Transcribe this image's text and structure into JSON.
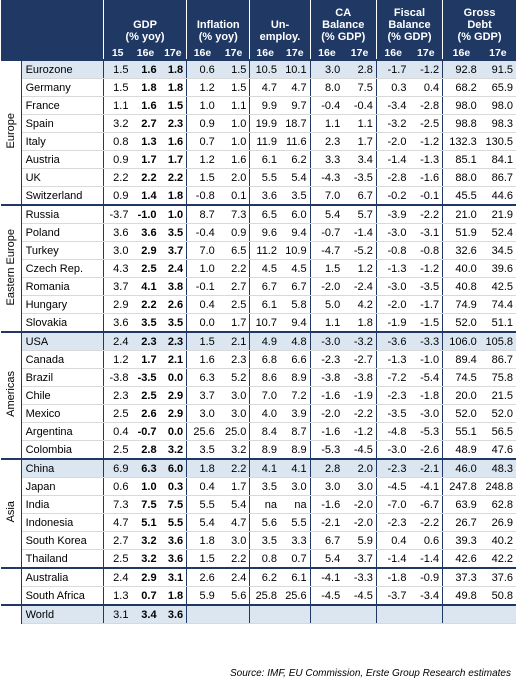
{
  "header": {
    "groups": [
      [
        "GDP",
        "(% yoy)"
      ],
      [
        "Inflation",
        "(% yoy)"
      ],
      [
        "Un-",
        "employ."
      ],
      [
        "CA",
        "Balance",
        "(% GDP)"
      ],
      [
        "Fiscal",
        "Balance",
        "(% GDP)"
      ],
      [
        "Gross",
        "Debt",
        "(% GDP)"
      ]
    ],
    "columns": [
      "15",
      "16e",
      "17e",
      "16e",
      "17e",
      "16e",
      "17e",
      "16e",
      "17e",
      "16e",
      "17e",
      "16e",
      "17e"
    ]
  },
  "regions": [
    {
      "label": "Europe",
      "rows": [
        {
          "country": "Eurozone",
          "highlight": true,
          "values": [
            "1.5",
            "1.6",
            "1.8",
            "0.6",
            "1.5",
            "10.5",
            "10.1",
            "3.0",
            "2.8",
            "-1.7",
            "-1.2",
            "92.8",
            "91.5"
          ]
        },
        {
          "country": "Germany",
          "values": [
            "1.5",
            "1.8",
            "1.8",
            "1.2",
            "1.5",
            "4.7",
            "4.7",
            "8.0",
            "7.5",
            "0.3",
            "0.4",
            "68.2",
            "65.9"
          ]
        },
        {
          "country": "France",
          "values": [
            "1.1",
            "1.6",
            "1.5",
            "1.0",
            "1.1",
            "9.9",
            "9.7",
            "-0.4",
            "-0.4",
            "-3.4",
            "-2.8",
            "98.0",
            "98.0"
          ]
        },
        {
          "country": "Spain",
          "values": [
            "3.2",
            "2.7",
            "2.3",
            "0.9",
            "1.0",
            "19.9",
            "18.7",
            "1.1",
            "1.1",
            "-3.2",
            "-2.5",
            "98.8",
            "98.3"
          ]
        },
        {
          "country": "Italy",
          "values": [
            "0.8",
            "1.3",
            "1.6",
            "0.7",
            "1.0",
            "11.9",
            "11.6",
            "2.3",
            "1.7",
            "-2.0",
            "-1.2",
            "132.3",
            "130.5"
          ]
        },
        {
          "country": "Austria",
          "values": [
            "0.9",
            "1.7",
            "1.7",
            "1.2",
            "1.6",
            "6.1",
            "6.2",
            "3.3",
            "3.4",
            "-1.4",
            "-1.3",
            "85.1",
            "84.1"
          ]
        },
        {
          "country": "UK",
          "values": [
            "2.2",
            "2.2",
            "2.2",
            "1.5",
            "2.0",
            "5.5",
            "5.4",
            "-4.3",
            "-3.5",
            "-2.8",
            "-1.6",
            "88.0",
            "86.7"
          ]
        },
        {
          "country": "Switzerland",
          "values": [
            "0.9",
            "1.4",
            "1.8",
            "-0.8",
            "0.1",
            "3.6",
            "3.5",
            "7.0",
            "6.7",
            "-0.2",
            "-0.1",
            "45.5",
            "44.6"
          ]
        }
      ]
    },
    {
      "label": "Eastern Europe",
      "rows": [
        {
          "country": "Russia",
          "values": [
            "-3.7",
            "-1.0",
            "1.0",
            "8.7",
            "7.3",
            "6.5",
            "6.0",
            "5.4",
            "5.7",
            "-3.9",
            "-2.2",
            "21.0",
            "21.9"
          ]
        },
        {
          "country": "Poland",
          "values": [
            "3.6",
            "3.6",
            "3.5",
            "-0.4",
            "0.9",
            "9.6",
            "9.4",
            "-0.7",
            "-1.4",
            "-3.0",
            "-3.1",
            "51.9",
            "52.4"
          ]
        },
        {
          "country": "Turkey",
          "values": [
            "3.0",
            "2.9",
            "3.7",
            "7.0",
            "6.5",
            "11.2",
            "10.9",
            "-4.7",
            "-5.2",
            "-0.8",
            "-0.8",
            "32.6",
            "34.5"
          ]
        },
        {
          "country": "Czech Rep.",
          "values": [
            "4.3",
            "2.5",
            "2.4",
            "1.0",
            "2.2",
            "4.5",
            "4.5",
            "1.5",
            "1.2",
            "-1.3",
            "-1.2",
            "40.0",
            "39.6"
          ]
        },
        {
          "country": "Romania",
          "values": [
            "3.7",
            "4.1",
            "3.8",
            "-0.1",
            "2.7",
            "6.7",
            "6.7",
            "-2.0",
            "-2.4",
            "-3.0",
            "-3.5",
            "40.8",
            "42.5"
          ]
        },
        {
          "country": "Hungary",
          "values": [
            "2.9",
            "2.2",
            "2.6",
            "0.4",
            "2.5",
            "6.1",
            "5.8",
            "5.0",
            "4.2",
            "-2.0",
            "-1.7",
            "74.9",
            "74.4"
          ]
        },
        {
          "country": "Slovakia",
          "values": [
            "3.6",
            "3.5",
            "3.5",
            "0.0",
            "1.7",
            "10.7",
            "9.4",
            "1.1",
            "1.8",
            "-1.9",
            "-1.5",
            "52.0",
            "51.1"
          ]
        }
      ]
    },
    {
      "label": "Americas",
      "rows": [
        {
          "country": "USA",
          "highlight": true,
          "values": [
            "2.4",
            "2.3",
            "2.3",
            "1.5",
            "2.1",
            "4.9",
            "4.8",
            "-3.0",
            "-3.2",
            "-3.6",
            "-3.3",
            "106.0",
            "105.8"
          ]
        },
        {
          "country": "Canada",
          "values": [
            "1.2",
            "1.7",
            "2.1",
            "1.6",
            "2.3",
            "6.8",
            "6.6",
            "-2.3",
            "-2.7",
            "-1.3",
            "-1.0",
            "89.4",
            "86.7"
          ]
        },
        {
          "country": "Brazil",
          "values": [
            "-3.8",
            "-3.5",
            "0.0",
            "6.3",
            "5.2",
            "8.6",
            "8.9",
            "-3.8",
            "-3.8",
            "-7.2",
            "-5.4",
            "74.5",
            "75.8"
          ]
        },
        {
          "country": "Chile",
          "values": [
            "2.3",
            "2.5",
            "2.9",
            "3.7",
            "3.0",
            "7.0",
            "7.2",
            "-1.6",
            "-1.9",
            "-2.3",
            "-1.8",
            "20.0",
            "21.5"
          ]
        },
        {
          "country": "Mexico",
          "values": [
            "2.5",
            "2.6",
            "2.9",
            "3.0",
            "3.0",
            "4.0",
            "3.9",
            "-2.0",
            "-2.2",
            "-3.5",
            "-3.0",
            "52.0",
            "52.0"
          ]
        },
        {
          "country": "Argentina",
          "values": [
            "0.4",
            "-0.7",
            "0.0",
            "25.6",
            "25.0",
            "8.4",
            "8.7",
            "-1.6",
            "-1.2",
            "-4.8",
            "-5.3",
            "55.1",
            "56.5"
          ]
        },
        {
          "country": "Colombia",
          "values": [
            "2.5",
            "2.8",
            "3.2",
            "3.5",
            "3.2",
            "8.9",
            "8.9",
            "-5.3",
            "-4.5",
            "-3.0",
            "-2.6",
            "48.9",
            "47.6"
          ]
        }
      ]
    },
    {
      "label": "Asia",
      "rows": [
        {
          "country": "China",
          "highlight": true,
          "values": [
            "6.9",
            "6.3",
            "6.0",
            "1.8",
            "2.2",
            "4.1",
            "4.1",
            "2.8",
            "2.0",
            "-2.3",
            "-2.1",
            "46.0",
            "48.3"
          ]
        },
        {
          "country": "Japan",
          "values": [
            "0.6",
            "1.0",
            "0.3",
            "0.4",
            "1.7",
            "3.5",
            "3.0",
            "3.0",
            "3.0",
            "-4.5",
            "-4.1",
            "247.8",
            "248.8"
          ]
        },
        {
          "country": "India",
          "values": [
            "7.3",
            "7.5",
            "7.5",
            "5.5",
            "5.4",
            "na",
            "na",
            "-1.6",
            "-2.0",
            "-7.0",
            "-6.7",
            "63.9",
            "62.8"
          ]
        },
        {
          "country": "Indonesia",
          "values": [
            "4.7",
            "5.1",
            "5.5",
            "5.4",
            "4.7",
            "5.6",
            "5.5",
            "-2.1",
            "-2.0",
            "-2.3",
            "-2.2",
            "26.7",
            "26.9"
          ]
        },
        {
          "country": "South Korea",
          "values": [
            "2.7",
            "3.2",
            "3.6",
            "1.8",
            "3.0",
            "3.5",
            "3.3",
            "6.7",
            "5.9",
            "0.4",
            "0.6",
            "39.3",
            "40.2"
          ]
        },
        {
          "country": "Thailand",
          "values": [
            "2.5",
            "3.2",
            "3.6",
            "1.5",
            "2.2",
            "0.8",
            "0.7",
            "5.4",
            "3.7",
            "-1.4",
            "-1.4",
            "42.6",
            "42.2"
          ]
        }
      ]
    },
    {
      "rows": [
        {
          "country": "Australia",
          "values": [
            "2.4",
            "2.9",
            "3.1",
            "2.6",
            "2.4",
            "6.2",
            "6.1",
            "-4.1",
            "-3.3",
            "-1.8",
            "-0.9",
            "37.3",
            "37.6"
          ]
        },
        {
          "country": "South Africa",
          "values": [
            "1.3",
            "0.7",
            "1.8",
            "5.9",
            "5.6",
            "25.8",
            "25.6",
            "-4.5",
            "-4.5",
            "-3.7",
            "-3.4",
            "49.8",
            "50.8"
          ]
        }
      ]
    },
    {
      "rows": [
        {
          "country": "World",
          "highlight": true,
          "values": [
            "3.1",
            "3.4",
            "3.6"
          ]
        }
      ]
    }
  ],
  "source": "Source: IMF, EU Commission, Erste Group Research estimates"
}
